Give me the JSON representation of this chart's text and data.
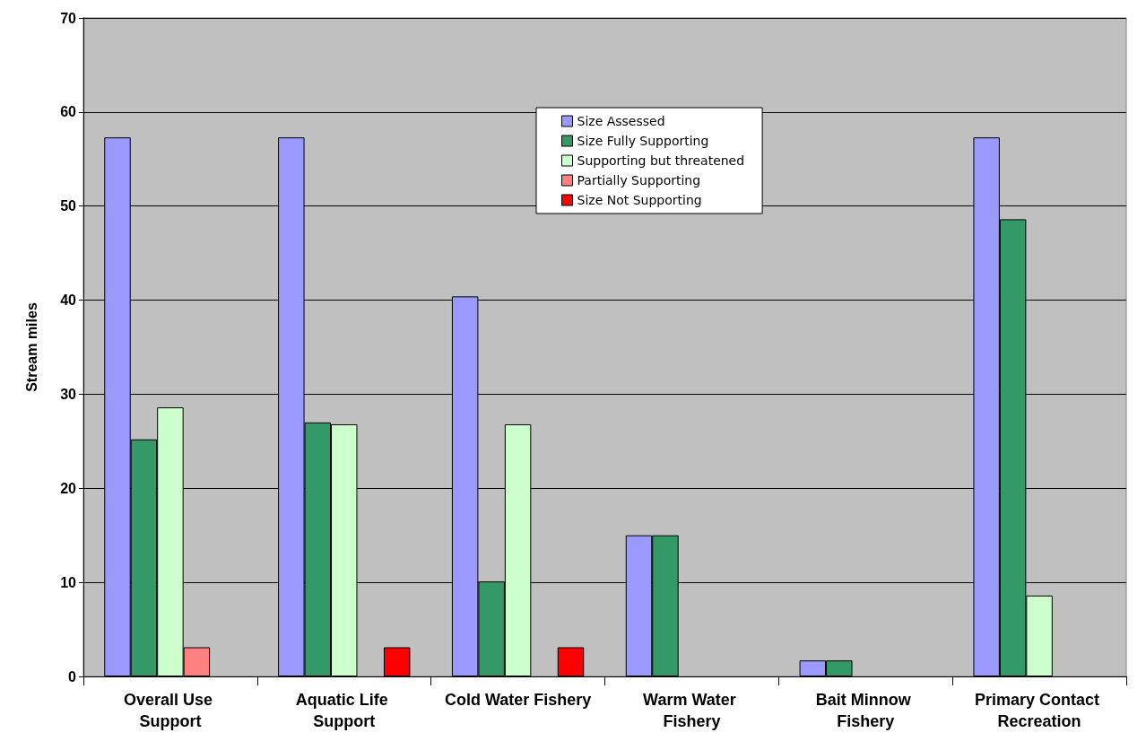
{
  "chart_data": {
    "type": "bar",
    "ylabel": "Stream miles",
    "categories": [
      "Overall Use Support",
      "Aquatic Life Support",
      "Cold Water Fishery",
      "Warm Water Fishery",
      "Bait Minnow Fishery",
      "Primary Contact Recreation"
    ],
    "series": [
      {
        "name": "Size Assessed",
        "color": "#9999ff",
        "values": [
          57.3,
          57.3,
          40.4,
          15.0,
          1.7,
          57.3
        ]
      },
      {
        "name": "Size Fully Supporting",
        "color": "#339966",
        "values": [
          25.2,
          27.0,
          10.1,
          15.0,
          1.7,
          48.6
        ]
      },
      {
        "name": "Supporting but threatened",
        "color": "#ccffcc",
        "values": [
          28.6,
          26.8,
          26.8,
          null,
          null,
          8.6
        ]
      },
      {
        "name": "Partially Supporting",
        "color": "#ff8080",
        "values": [
          3.1,
          null,
          null,
          null,
          null,
          null
        ]
      },
      {
        "name": "Size Not Supporting",
        "color": "#ff0000",
        "values": [
          null,
          3.1,
          3.1,
          null,
          null,
          null
        ]
      }
    ],
    "ylim": [
      0,
      70
    ],
    "yticks": [
      0,
      10,
      20,
      30,
      40,
      50,
      60,
      70
    ],
    "grid": "y",
    "legend": "top"
  }
}
